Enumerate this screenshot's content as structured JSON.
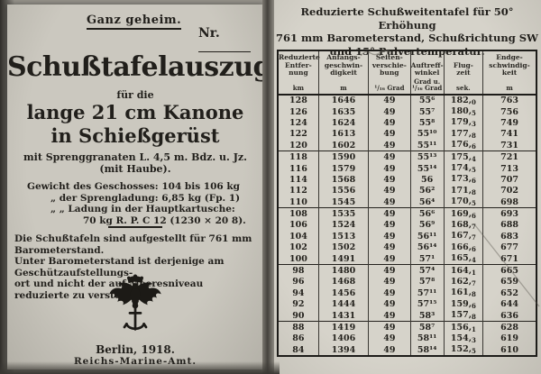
{
  "left_page": {
    "classification": "Ganz geheim.",
    "nr_label": "Nr.",
    "title": "Schußtafelauszug",
    "subtitle1": "für die",
    "subtitle2": "lange 21 cm Kanone",
    "subtitle3": "in Schießgerüst",
    "ammo_line1": "mit Sprenggranaten L. 4,5 m. Bdz. u. Jz.",
    "ammo_line2": "(mit Haube).",
    "weight_lines": [
      "Gewicht des Geschosses: 104 bis 106 kg",
      "„   der Sprengladung: 6,85 kg (Fp. 1)",
      "„   „  Ladung in der Hauptkartusche:",
      "70 kg R. P. C 12 (1230 × 20 8)."
    ],
    "note_lines": [
      "Die Schußtafeln sind aufgestellt für 761 mm Barometerstand.",
      "Unter Barometerstand ist derjenige am Geschützaufstellungs-",
      "ort und nicht der auf Meeresniveau reduzierte zu verstehen."
    ],
    "emblem_name": "reichsadler-mit-anker",
    "place_date": "Berlin, 1918.",
    "issuer": "Reichs-Marine-Amt."
  },
  "right_page": {
    "title_lines": [
      "Reduzierte Schußweitentafel für 50° Erhöhung",
      "761 mm Barometerstand, Schußrichtung SW",
      "und 15° Pulvertemperatur."
    ],
    "table": {
      "columns": [
        {
          "key": "reduzierte-entfernung",
          "lines": [
            "Reduzierte",
            "Entfer-",
            "nung"
          ],
          "unit_lines": [
            "km"
          ]
        },
        {
          "key": "anfangsgeschwindigkeit",
          "lines": [
            "Anfangs-",
            "geschwin-",
            "digkeit"
          ],
          "unit_lines": [
            "m"
          ]
        },
        {
          "key": "seitenverschiebung",
          "lines": [
            "Seiten-",
            "verschie-",
            "bung"
          ],
          "unit_lines": [
            "¹/₁₆ Grad"
          ]
        },
        {
          "key": "auftreffwinkel",
          "lines": [
            "Auftreff-",
            "winkel"
          ],
          "unit_lines": [
            "Grad u.",
            "¹/₁₆ Grad"
          ]
        },
        {
          "key": "flugzeit",
          "lines": [
            "Flug-",
            "zeit"
          ],
          "unit_lines": [
            "sek."
          ]
        },
        {
          "key": "endgeschwindigkeit",
          "lines": [
            "Endge-",
            "schwindig-",
            "keit"
          ],
          "unit_lines": [
            "m"
          ]
        }
      ],
      "groups": [
        [
          [
            "128",
            "1646",
            "49",
            "55⁶",
            "182,0",
            "763"
          ],
          [
            "126",
            "1635",
            "49",
            "55⁷",
            "180,5",
            "756"
          ],
          [
            "124",
            "1624",
            "49",
            "55⁸",
            "179,3",
            "749"
          ],
          [
            "122",
            "1613",
            "49",
            "55¹⁰",
            "177,8",
            "741"
          ],
          [
            "120",
            "1602",
            "49",
            "55¹¹",
            "176,6",
            "731"
          ]
        ],
        [
          [
            "118",
            "1590",
            "49",
            "55¹³",
            "175,4",
            "721"
          ],
          [
            "116",
            "1579",
            "49",
            "55¹⁴",
            "174,5",
            "713"
          ],
          [
            "114",
            "1568",
            "49",
            "56",
            "173,6",
            "707"
          ],
          [
            "112",
            "1556",
            "49",
            "56²",
            "171,8",
            "702"
          ],
          [
            "110",
            "1545",
            "49",
            "56⁴",
            "170,5",
            "698"
          ]
        ],
        [
          [
            "108",
            "1535",
            "49",
            "56⁶",
            "169,6",
            "693"
          ],
          [
            "106",
            "1524",
            "49",
            "56⁹",
            "168,7",
            "688"
          ],
          [
            "104",
            "1513",
            "49",
            "56¹¹",
            "167,7",
            "683"
          ],
          [
            "102",
            "1502",
            "49",
            "56¹⁴",
            "166,6",
            "677"
          ],
          [
            "100",
            "1491",
            "49",
            "57¹",
            "165,4",
            "671"
          ]
        ],
        [
          [
            "98",
            "1480",
            "49",
            "57⁴",
            "164,1",
            "665"
          ],
          [
            "96",
            "1468",
            "49",
            "57⁸",
            "162,7",
            "659"
          ],
          [
            "94",
            "1456",
            "49",
            "57¹¹",
            "161,8",
            "652"
          ],
          [
            "92",
            "1444",
            "49",
            "57¹⁵",
            "159,6",
            "644"
          ],
          [
            "90",
            "1431",
            "49",
            "58³",
            "157,8",
            "636"
          ]
        ],
        [
          [
            "88",
            "1419",
            "49",
            "58⁷",
            "156,1",
            "628"
          ],
          [
            "86",
            "1406",
            "49",
            "58¹¹",
            "154,3",
            "619"
          ],
          [
            "84",
            "1394",
            "49",
            "58¹⁴",
            "152,5",
            "610"
          ]
        ]
      ]
    },
    "annotations": {
      "pencil_note": "illegible-pencil-scribble",
      "pencil_stroke": "diagonal-pencil-line"
    }
  }
}
